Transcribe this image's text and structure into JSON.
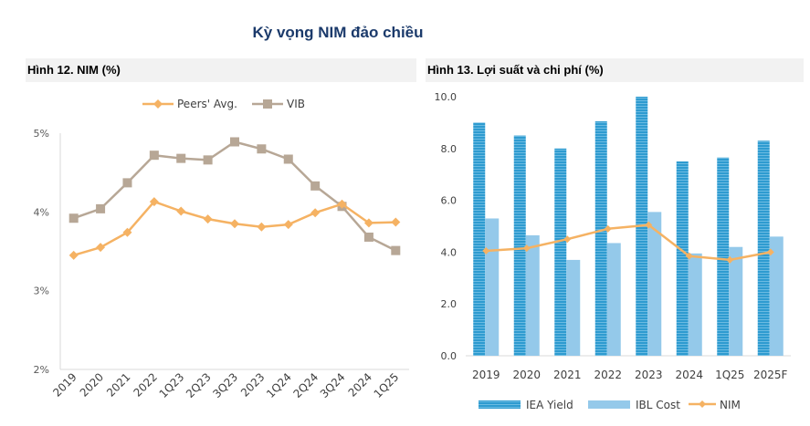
{
  "page": {
    "title": "Kỳ vọng NIM đảo chiều"
  },
  "colors": {
    "peers": "#f5b263",
    "vib": "#b7a796",
    "iea": "#2e9bd0",
    "ibl": "#94c9ea",
    "nim": "#f5b263"
  },
  "chart_data": [
    {
      "type": "line",
      "title": "Hình 12. NIM (%)",
      "categories": [
        "2019",
        "2020",
        "2021",
        "2022",
        "1Q23",
        "2Q23",
        "3Q23",
        "2023",
        "1Q24",
        "2Q24",
        "3Q24",
        "2024",
        "1Q25"
      ],
      "series": [
        {
          "name": "Peers' Avg.",
          "values": [
            3.45,
            3.55,
            3.74,
            4.13,
            4.01,
            3.91,
            3.85,
            3.81,
            3.84,
            3.99,
            4.1,
            3.86,
            3.87
          ]
        },
        {
          "name": "VIB",
          "values": [
            3.92,
            4.04,
            4.37,
            4.72,
            4.68,
            4.66,
            4.89,
            4.8,
            4.67,
            4.33,
            4.07,
            3.68,
            3.51
          ]
        }
      ],
      "ylim": [
        2,
        5
      ],
      "yticks": [
        "2%",
        "3%",
        "4%",
        "5%"
      ],
      "legend": "top"
    },
    {
      "type": "bar",
      "title": "Hình 13. Lợi suất và chi phí (%)",
      "categories": [
        "2019",
        "2020",
        "2021",
        "2022",
        "2023",
        "2024",
        "1Q25",
        "2025F"
      ],
      "series": [
        {
          "name": "IEA Yield",
          "type": "bar",
          "values": [
            9.0,
            8.5,
            8.0,
            9.05,
            10.0,
            7.5,
            7.65,
            8.3
          ]
        },
        {
          "name": "IBL Cost",
          "type": "bar",
          "values": [
            5.3,
            4.65,
            3.7,
            4.35,
            5.55,
            3.95,
            4.2,
            4.6
          ]
        },
        {
          "name": "NIM",
          "type": "line",
          "values": [
            4.05,
            4.15,
            4.5,
            4.9,
            5.05,
            3.85,
            3.7,
            4.0
          ]
        }
      ],
      "ylim": [
        0,
        10
      ],
      "yticks": [
        "0.0",
        "2.0",
        "4.0",
        "6.0",
        "8.0",
        "10.0"
      ],
      "legend": "bottom"
    }
  ]
}
